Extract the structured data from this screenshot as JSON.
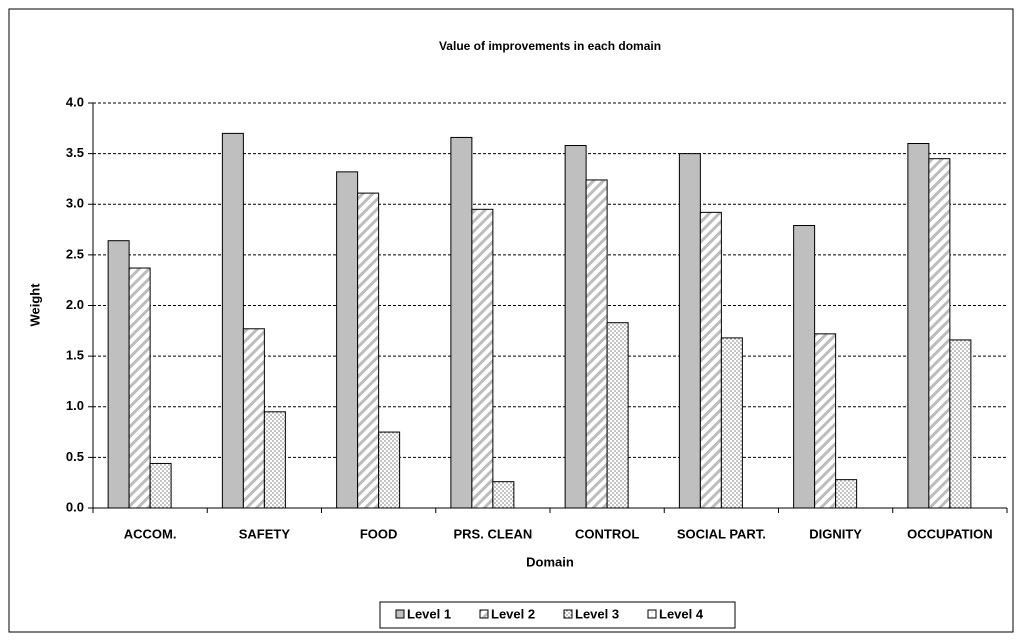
{
  "chart_data": {
    "type": "bar",
    "title": "Value of improvements in each domain",
    "x_label": "Domain",
    "y_label": "Weight",
    "categories": [
      "ACCOM.",
      "SAFETY",
      "FOOD",
      "PRS. CLEAN",
      "CONTROL",
      "SOCIAL PART.",
      "DIGNITY",
      "OCCUPATION"
    ],
    "series": [
      {
        "name": "Level 1",
        "color": "#bfbfbf",
        "values": [
          2.64,
          3.7,
          3.32,
          3.66,
          3.58,
          3.5,
          2.79,
          3.6
        ]
      },
      {
        "name": "Level 2",
        "color": "#ffffff",
        "values": [
          2.37,
          1.77,
          3.11,
          2.95,
          3.24,
          2.92,
          1.72,
          3.45
        ]
      },
      {
        "name": "Level 3",
        "color": "#ffffff",
        "values": [
          0.44,
          0.95,
          0.75,
          0.26,
          1.83,
          1.68,
          0.28,
          1.66
        ]
      },
      {
        "name": "Level 4",
        "color": "#ffffff",
        "values": [
          0,
          0,
          0,
          0,
          0,
          0,
          0,
          0
        ]
      }
    ],
    "ylim": [
      0,
      4
    ],
    "yticks": [
      {
        "value": 0,
        "label": "0.0"
      },
      {
        "value": 0.5,
        "label": "0.5"
      },
      {
        "value": 1,
        "label": "1.0"
      },
      {
        "value": 1.5,
        "label": "1.5"
      },
      {
        "value": 2,
        "label": "2.0"
      },
      {
        "value": 2.5,
        "label": "2.5"
      },
      {
        "value": 3,
        "label": "3.0"
      },
      {
        "value": 3.5,
        "label": "3.5"
      },
      {
        "value": 4,
        "label": "4.0"
      }
    ],
    "grid": true,
    "legend": "bottom"
  }
}
